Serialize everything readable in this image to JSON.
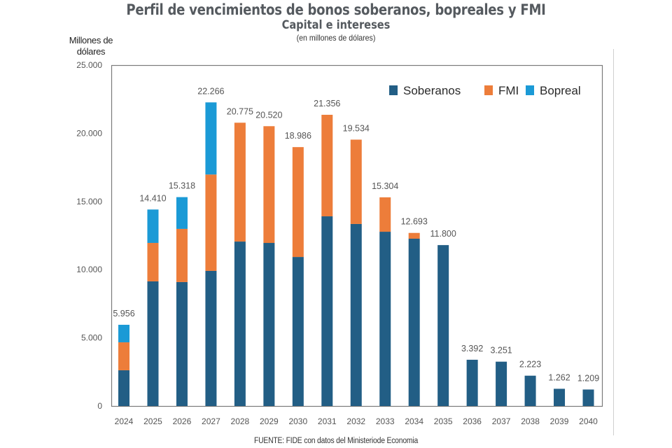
{
  "chart_data": {
    "type": "bar",
    "stacked": true,
    "title": "Perfil de vencimientos de bonos soberanos, bopreales y FMI",
    "subtitle": "Capital e intereses",
    "unit_note": "(en millones de dólares)",
    "ylabel_lines": [
      "Millones de",
      "dólares"
    ],
    "xlabel": "",
    "ylim": [
      0,
      25000
    ],
    "yticks": [
      0,
      5000,
      10000,
      15000,
      20000,
      25000
    ],
    "ytick_labels": [
      "0",
      "5.000",
      "10.000",
      "15.000",
      "20.000",
      "25.000"
    ],
    "grid": false,
    "legend_position": "top-right",
    "categories": [
      "2024",
      "2025",
      "2026",
      "2027",
      "2028",
      "2029",
      "2030",
      "2031",
      "2032",
      "2033",
      "2034",
      "2035",
      "2036",
      "2037",
      "2038",
      "2039",
      "2040"
    ],
    "series": [
      {
        "name": "Soberanos",
        "color": "#225e85",
        "values": [
          2620,
          9140,
          9090,
          9910,
          12060,
          11960,
          10930,
          13910,
          13350,
          12780,
          12270,
          11800,
          3392,
          3251,
          2223,
          1262,
          1209
        ]
      },
      {
        "name": "FMI",
        "color": "#ed7d3a",
        "values": [
          2050,
          2820,
          3900,
          7066,
          8715,
          8560,
          8056,
          7446,
          6184,
          2524,
          423,
          0,
          0,
          0,
          0,
          0,
          0
        ]
      },
      {
        "name": "Bopreal",
        "color": "#1b9ad6",
        "values": [
          1286,
          2450,
          2328,
          5290,
          0,
          0,
          0,
          0,
          0,
          0,
          0,
          0,
          0,
          0,
          0,
          0,
          0
        ]
      }
    ],
    "totals": [
      5956,
      14410,
      15318,
      22266,
      20775,
      20520,
      18986,
      21356,
      19534,
      15304,
      12693,
      11800,
      3392,
      3251,
      2223,
      1262,
      1209
    ],
    "total_labels": [
      "5.956",
      "14.410",
      "15.318",
      "22.266",
      "20.775",
      "20.520",
      "18.986",
      "21.356",
      "19.534",
      "15.304",
      "12.693",
      "11.800",
      "3.392",
      "3.251",
      "2.223",
      "1.262",
      "1.209"
    ],
    "source": "FUENTE: FIDE con datos del Ministeriode Economia"
  }
}
